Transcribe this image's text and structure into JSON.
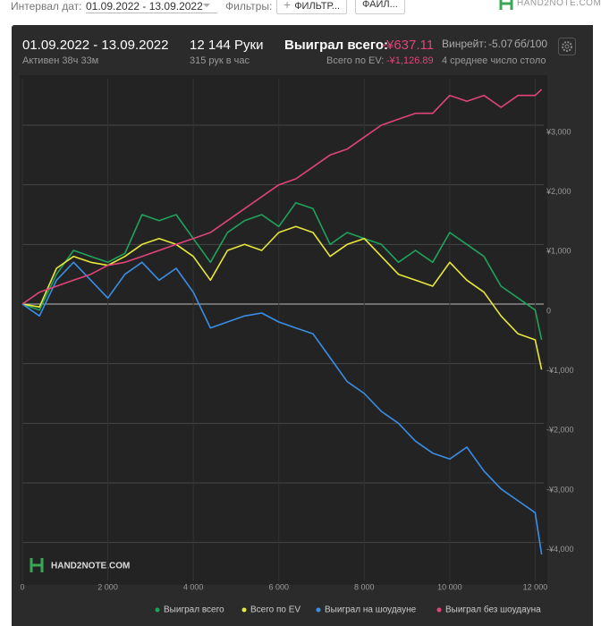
{
  "toolbar": {
    "date_label": "Интервал дат:",
    "date_value": "01.09.2022 - 13.09.2022",
    "filters_label": "Фильтры:",
    "filter_button": "ФИЛЬТР...",
    "file_button": "ФАЙЛ...",
    "logo": "HAND2NOTE.COM"
  },
  "header": {
    "period": "01.09.2022 - 13.09.2022",
    "active": "Активен 38ч 33м",
    "hands": "12 144 Руки",
    "hands_per_hour": "315 рук в час",
    "won_label": "Выиграл всего:",
    "won_value": "-¥637.11",
    "ev_label": "Всего по EV:",
    "ev_value": "-¥1,126.89",
    "winrate_label": "Винрейт:",
    "winrate_value": "-5.07",
    "winrate_unit": "бб/100",
    "tables": "4 среднее число столо"
  },
  "chart_data": {
    "type": "line",
    "watermark": "HAND2NOTE.COM",
    "x": [
      0,
      400,
      800,
      1200,
      1600,
      2000,
      2400,
      2800,
      3200,
      3600,
      4000,
      4400,
      4800,
      5200,
      5600,
      6000,
      6400,
      6800,
      7200,
      7600,
      8000,
      8400,
      8800,
      9200,
      9600,
      10000,
      10400,
      10800,
      11200,
      11600,
      12000,
      12150
    ],
    "series": [
      {
        "name": "Выиграл всего",
        "color": "#1fa35c",
        "values": [
          0,
          -100,
          500,
          900,
          800,
          700,
          850,
          1500,
          1400,
          1500,
          1100,
          700,
          1200,
          1400,
          1500,
          1300,
          1700,
          1600,
          1000,
          1200,
          1100,
          1000,
          700,
          900,
          700,
          1200,
          1000,
          800,
          300,
          100,
          -100,
          -600
        ]
      },
      {
        "name": "Всего по EV",
        "color": "#e8e83a",
        "values": [
          0,
          -50,
          600,
          800,
          700,
          650,
          800,
          1000,
          1100,
          1000,
          800,
          400,
          900,
          1000,
          900,
          1200,
          1300,
          1200,
          800,
          1000,
          1100,
          800,
          500,
          400,
          300,
          700,
          400,
          200,
          -200,
          -500,
          -600,
          -1100
        ]
      },
      {
        "name": "Выиграл на шоудауне",
        "color": "#3a8ee6",
        "values": [
          0,
          -200,
          400,
          700,
          400,
          100,
          500,
          700,
          400,
          600,
          200,
          -400,
          -300,
          -200,
          -150,
          -300,
          -400,
          -500,
          -900,
          -1300,
          -1500,
          -1800,
          -2000,
          -2300,
          -2500,
          -2600,
          -2400,
          -2800,
          -3100,
          -3300,
          -3500,
          -4200
        ]
      },
      {
        "name": "Выиграл без шоудауна",
        "color": "#e0457a",
        "values": [
          0,
          200,
          300,
          400,
          500,
          650,
          700,
          800,
          900,
          1000,
          1100,
          1200,
          1400,
          1600,
          1800,
          2000,
          2100,
          2300,
          2500,
          2600,
          2800,
          3000,
          3100,
          3200,
          3200,
          3500,
          3400,
          3500,
          3300,
          3500,
          3500,
          3600
        ]
      }
    ],
    "xlim": [
      0,
      12200
    ],
    "ylim": [
      -4650,
      3780
    ],
    "xticks": [
      0,
      {
        "value": 2000,
        "label": "2 000"
      },
      {
        "value": 4000,
        "label": "4 000"
      },
      {
        "value": 6000,
        "label": "6 000"
      },
      {
        "value": 8000,
        "label": "8 000"
      },
      {
        "value": 10000,
        "label": "10 000"
      },
      {
        "value": 12000,
        "label": "12 000"
      }
    ],
    "yticks": [
      {
        "value": -4000,
        "label": "-¥4,000"
      },
      {
        "value": -3000,
        "label": "-¥3,000"
      },
      {
        "value": -2000,
        "label": "-¥2,000"
      },
      {
        "value": -1000,
        "label": "-¥1,000"
      },
      0,
      {
        "value": 1000,
        "label": "¥1,000"
      },
      {
        "value": 2000,
        "label": "¥2,000"
      },
      {
        "value": 3000,
        "label": "¥3,000"
      }
    ],
    "grid": true,
    "legend": "bottom"
  }
}
